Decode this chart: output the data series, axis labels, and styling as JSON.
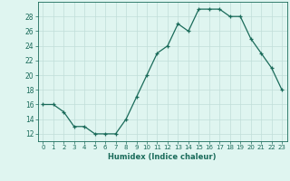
{
  "x": [
    0,
    1,
    2,
    3,
    4,
    5,
    6,
    7,
    8,
    9,
    10,
    11,
    12,
    13,
    14,
    15,
    16,
    17,
    18,
    19,
    20,
    21,
    22,
    23
  ],
  "y": [
    16,
    16,
    15,
    13,
    13,
    12,
    12,
    12,
    14,
    17,
    20,
    23,
    24,
    27,
    26,
    29,
    29,
    29,
    28,
    28,
    25,
    23,
    21,
    18
  ],
  "line_color": "#1a6b5a",
  "bg_color": "#dff5f0",
  "grid_color": "#c0ddd8",
  "xlabel": "Humidex (Indice chaleur)",
  "ylim": [
    11,
    30
  ],
  "yticks": [
    12,
    14,
    16,
    18,
    20,
    22,
    24,
    26,
    28
  ],
  "xlim": [
    -0.5,
    23.5
  ],
  "xticks": [
    0,
    1,
    2,
    3,
    4,
    5,
    6,
    7,
    8,
    9,
    10,
    11,
    12,
    13,
    14,
    15,
    16,
    17,
    18,
    19,
    20,
    21,
    22,
    23
  ]
}
